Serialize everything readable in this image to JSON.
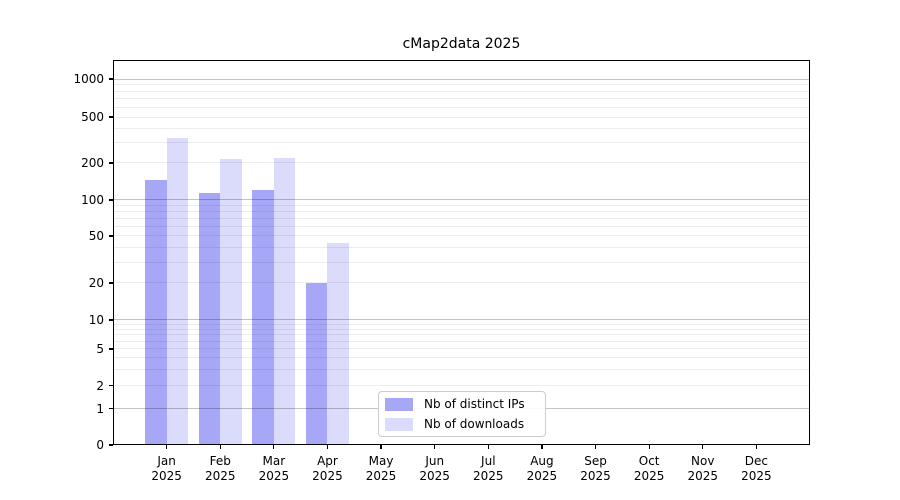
{
  "title": "cMap2data 2025",
  "chart_data": {
    "type": "bar",
    "title": "cMap2data 2025",
    "categories": [
      "Jan 2025",
      "Feb 2025",
      "Mar 2025",
      "Apr 2025",
      "May 2025",
      "Jun 2025",
      "Jul 2025",
      "Aug 2025",
      "Sep 2025",
      "Oct 2025",
      "Nov 2025",
      "Dec 2025"
    ],
    "series": [
      {
        "name": "Nb of distinct IPs",
        "color": "#a7a7f7",
        "values": [
          145,
          115,
          120,
          20,
          0,
          0,
          0,
          0,
          0,
          0,
          0,
          0
        ]
      },
      {
        "name": "Nb of downloads",
        "color": "#dbdbfb",
        "values": [
          330,
          215,
          220,
          44,
          0,
          0,
          0,
          0,
          0,
          0,
          0,
          0
        ]
      }
    ],
    "xlabel": "",
    "ylabel": "",
    "y_ticks": [
      0,
      1,
      2,
      5,
      10,
      20,
      50,
      100,
      200,
      500,
      1000
    ],
    "y_scale": "symlog-like (linear 0-1, quasi-log above)",
    "ylim": [
      0,
      1400
    ],
    "grid": "horizontal, minor light + major darker at powers of 10, drawn over bars",
    "legend_position": "inside axes, lower center-left",
    "background": "#ffffff"
  },
  "legend": {
    "items": [
      {
        "label": "Nb of distinct IPs",
        "color": "#a7a7f7"
      },
      {
        "label": "Nb of downloads",
        "color": "#dbdbfb"
      }
    ]
  }
}
